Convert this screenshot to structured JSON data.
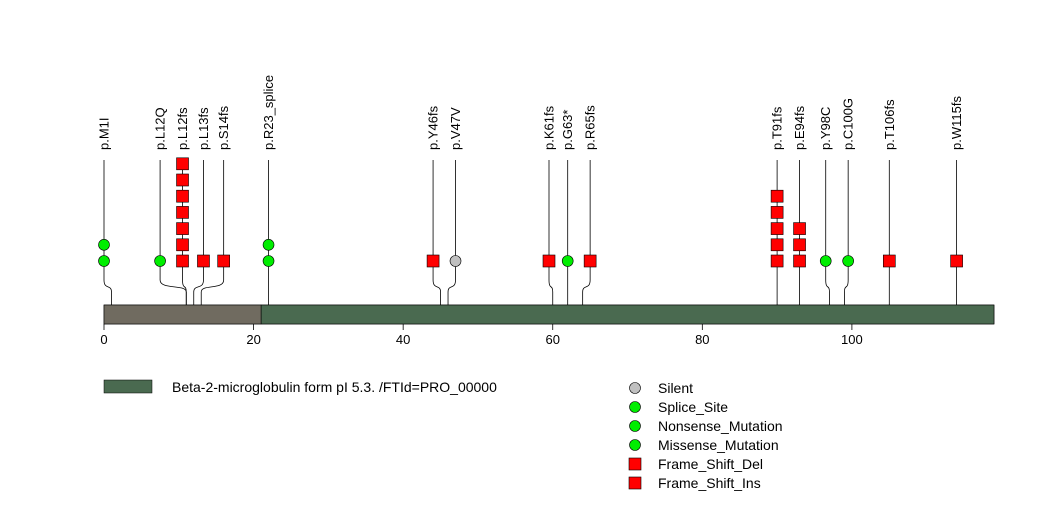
{
  "chart_data": {
    "type": "lollipop",
    "title": "",
    "x_axis": {
      "range": [
        0,
        119
      ],
      "ticks": [
        0,
        20,
        40,
        60,
        80,
        100
      ],
      "tick_labels": [
        "0",
        "20",
        "40",
        "60",
        "80",
        "100"
      ]
    },
    "domains": [
      {
        "name": "Beta-2-microglobulin form pI 5.3. /FTId=PRO_00000",
        "start": 21,
        "end": 119,
        "color": "#4a6a50"
      }
    ],
    "signal_region": {
      "start": 0,
      "end": 21,
      "color": "#706b60"
    },
    "mutations": [
      {
        "label": "p.M1I",
        "pos": 1,
        "labelPos": 0,
        "markers": [
          "missense",
          "missense"
        ]
      },
      {
        "label": "p.L12Q",
        "pos": 11,
        "labelPos": 7.5,
        "markers": [
          "missense"
        ]
      },
      {
        "label": "p.L12fs",
        "pos": 11,
        "labelPos": 10.5,
        "markers": [
          "fs_del",
          "fs_del",
          "fs_del",
          "fs_del",
          "fs_del",
          "fs_del",
          "fs_del"
        ]
      },
      {
        "label": "p.L13fs",
        "pos": 12,
        "labelPos": 13.3,
        "markers": [
          "fs_del"
        ]
      },
      {
        "label": "p.S14fs",
        "pos": 13,
        "labelPos": 16,
        "markers": [
          "fs_del"
        ]
      },
      {
        "label": "p.R23_splice",
        "pos": 22,
        "labelPos": 22,
        "markers": [
          "splice",
          "splice"
        ]
      },
      {
        "label": "p.Y46fs",
        "pos": 45,
        "labelPos": 44,
        "markers": [
          "fs_del"
        ]
      },
      {
        "label": "p.V47V",
        "pos": 46,
        "labelPos": 47,
        "markers": [
          "silent"
        ]
      },
      {
        "label": "p.K61fs",
        "pos": 60,
        "labelPos": 59.5,
        "markers": [
          "fs_del"
        ]
      },
      {
        "label": "p.G63*",
        "pos": 62,
        "labelPos": 62,
        "markers": [
          "nonsense"
        ]
      },
      {
        "label": "p.R65fs",
        "pos": 64,
        "labelPos": 65,
        "markers": [
          "fs_del"
        ]
      },
      {
        "label": "p.T91fs",
        "pos": 90,
        "labelPos": 90,
        "markers": [
          "fs_del",
          "fs_del",
          "fs_del",
          "fs_del",
          "fs_ins"
        ]
      },
      {
        "label": "p.E94fs",
        "pos": 93,
        "labelPos": 93,
        "markers": [
          "fs_del",
          "fs_del",
          "fs_del"
        ]
      },
      {
        "label": "p.Y98C",
        "pos": 97,
        "labelPos": 96.5,
        "markers": [
          "missense"
        ]
      },
      {
        "label": "p.C100G",
        "pos": 99,
        "labelPos": 99.5,
        "markers": [
          "missense"
        ]
      },
      {
        "label": "p.T106fs",
        "pos": 105,
        "labelPos": 105,
        "markers": [
          "fs_del"
        ]
      },
      {
        "label": "p.W115fs",
        "pos": 114,
        "labelPos": 114,
        "markers": [
          "fs_del"
        ]
      }
    ],
    "legend": {
      "placement": "bottom-right",
      "items": [
        {
          "key": "silent",
          "label": "Silent",
          "shape": "circle",
          "color": "#c0c0c0"
        },
        {
          "key": "splice",
          "label": "Splice_Site",
          "shape": "circle",
          "color": "#00ee00"
        },
        {
          "key": "nonsense",
          "label": "Nonsense_Mutation",
          "shape": "circle",
          "color": "#00ee00"
        },
        {
          "key": "missense",
          "label": "Missense_Mutation",
          "shape": "circle",
          "color": "#00ee00"
        },
        {
          "key": "fs_del",
          "label": "Frame_Shift_Del",
          "shape": "square",
          "color": "#ff0000"
        },
        {
          "key": "fs_ins",
          "label": "Frame_Shift_Ins",
          "shape": "square",
          "color": "#ff0000"
        }
      ]
    }
  }
}
